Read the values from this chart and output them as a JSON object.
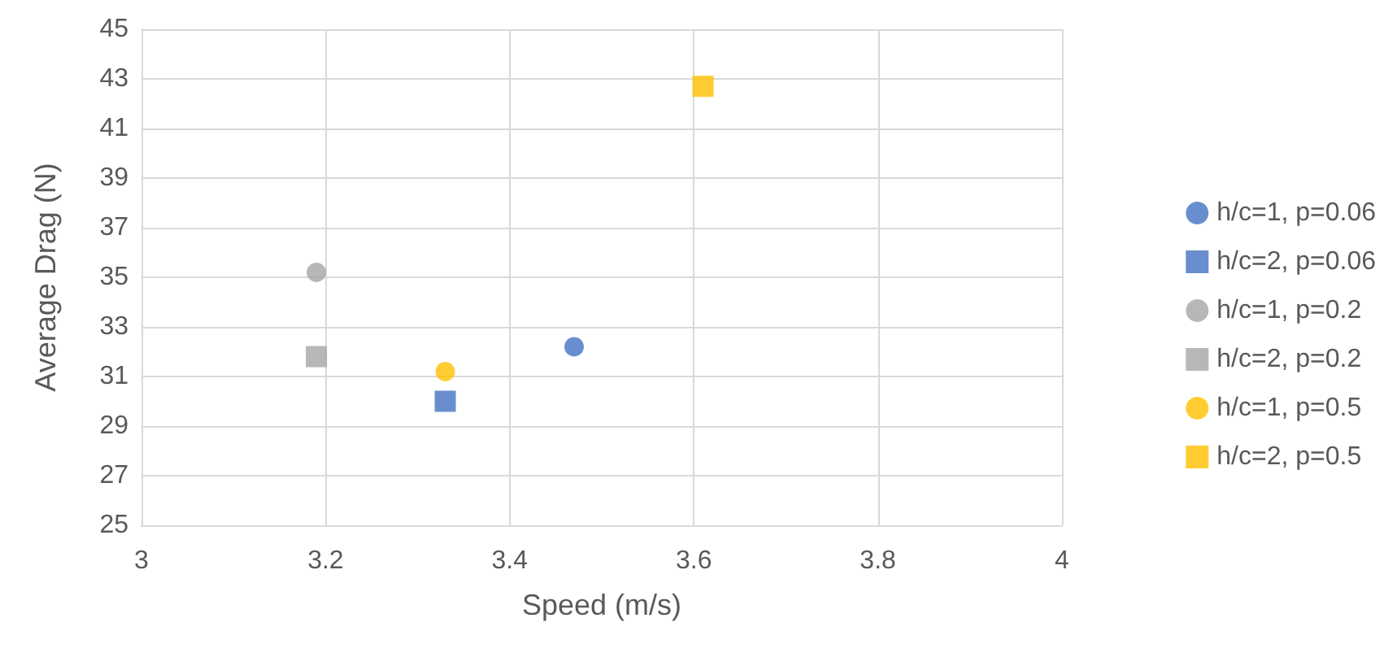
{
  "chart_data": {
    "type": "scatter",
    "xlabel": "Speed (m/s)",
    "ylabel": "Average Drag (N)",
    "xlim": [
      3,
      4
    ],
    "xticks": [
      3,
      3.2,
      3.4,
      3.6,
      3.8,
      4
    ],
    "ylim": [
      25,
      45
    ],
    "yticks": [
      25,
      27,
      29,
      31,
      33,
      35,
      37,
      39,
      41,
      43,
      45
    ],
    "grid": true,
    "legend": "right",
    "series": [
      {
        "name": "h/c=1, p=0.06",
        "color": "#4472c4",
        "marker": "circle",
        "x": [
          3.47
        ],
        "values": [
          32.2
        ]
      },
      {
        "name": "h/c=2, p=0.06",
        "color": "#4472c4",
        "marker": "square",
        "x": [
          3.33
        ],
        "values": [
          30.0
        ]
      },
      {
        "name": "h/c=1, p=0.2",
        "color": "#a5a5a5",
        "marker": "circle",
        "x": [
          3.19
        ],
        "values": [
          35.2
        ]
      },
      {
        "name": "h/c=2, p=0.2",
        "color": "#a5a5a5",
        "marker": "square",
        "x": [
          3.19
        ],
        "values": [
          31.8
        ]
      },
      {
        "name": "h/c=1, p=0.5",
        "color": "#ffc000",
        "marker": "circle",
        "x": [
          3.33
        ],
        "values": [
          31.2
        ]
      },
      {
        "name": "h/c=2, p=0.5",
        "color": "#ffc000",
        "marker": "square",
        "x": [
          3.61
        ],
        "values": [
          42.7
        ]
      }
    ]
  }
}
